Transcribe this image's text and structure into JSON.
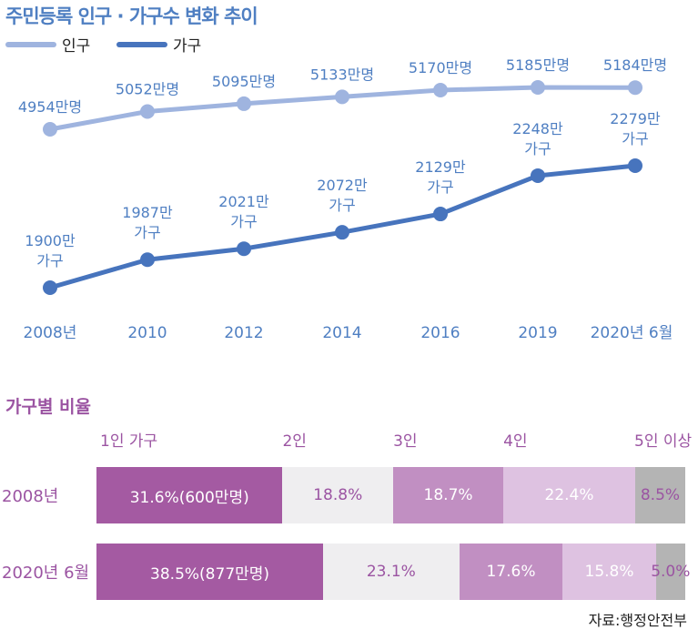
{
  "title": "주민등록 인구 · 가구수 변화 추이",
  "colors": {
    "population": "#9fb4df",
    "households": "#4774bd",
    "text_blue": "#4f7fc2",
    "purple": "#9b54a2",
    "seg1": "#a45aa2",
    "seg2": "#efeef0",
    "seg3": "#c18fc2",
    "seg4": "#dec2e1",
    "seg5": "#b4b4b4"
  },
  "chart_data": [
    {
      "type": "line",
      "title": "주민등록 인구 · 가구수 변화 추이",
      "x": [
        "2008년",
        "2010",
        "2012",
        "2014",
        "2016",
        "2019",
        "2020년 6월"
      ],
      "series": [
        {
          "name": "인구",
          "values": [
            4954,
            5052,
            5095,
            5133,
            5170,
            5185,
            5184
          ],
          "labels": [
            "4954만명",
            "5052만명",
            "5095만명",
            "5133만명",
            "5170만명",
            "5185만명",
            "5184만명"
          ]
        },
        {
          "name": "가구",
          "values": [
            1900,
            1987,
            2021,
            2072,
            2129,
            2248,
            2279
          ],
          "labels": [
            "1900만\n가구",
            "1987만\n가구",
            "2021만\n가구",
            "2072만\n가구",
            "2129만\n가구",
            "2248만\n가구",
            "2279만\n가구"
          ]
        }
      ],
      "legend": "top-left",
      "grid": false
    },
    {
      "type": "bar",
      "stacked": true,
      "orientation": "horizontal",
      "title": "가구별 비율",
      "categories": [
        "2008년",
        "2020년 6월"
      ],
      "series": [
        {
          "name": "1인 가구",
          "values": [
            31.6,
            38.5
          ],
          "labels": [
            "31.6%(600만명)",
            "38.5%(877만명)"
          ]
        },
        {
          "name": "2인",
          "values": [
            18.8,
            23.1
          ],
          "labels": [
            "18.8%",
            "23.1%"
          ]
        },
        {
          "name": "3인",
          "values": [
            18.7,
            17.6
          ],
          "labels": [
            "18.7%",
            "17.6%"
          ]
        },
        {
          "name": "4인",
          "values": [
            22.4,
            15.8
          ],
          "labels": [
            "22.4%",
            "15.8%"
          ]
        },
        {
          "name": "5인 이상",
          "values": [
            8.5,
            5.0
          ],
          "labels": [
            "8.5%",
            "5.0%"
          ]
        }
      ]
    }
  ],
  "source": "자료:행정안전부"
}
